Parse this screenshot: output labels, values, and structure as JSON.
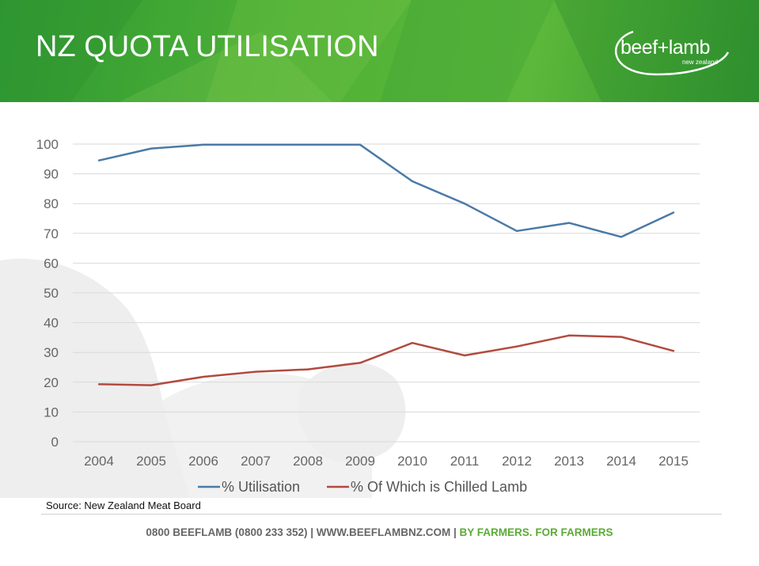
{
  "header": {
    "title": "NZ QUOTA UTILISATION"
  },
  "logo": {
    "main": "beef+lamb",
    "sub": "new zealand"
  },
  "source": "Source: New Zealand Meat Board",
  "footer": {
    "contact": "0800 BEEFLAMB (0800 233 352) | WWW.BEEFLAMBNZ.COM | ",
    "tagline": "BY FARMERS. FOR FARMERS"
  },
  "colors": {
    "header_green": "#4fb136",
    "series_utilisation": "#4a7aa7",
    "series_chilled": "#b24a40",
    "footer_tag": "#5bab35"
  },
  "chart_data": {
    "type": "line",
    "title": "",
    "xlabel": "",
    "ylabel": "",
    "categories": [
      "2004",
      "2005",
      "2006",
      "2007",
      "2008",
      "2009",
      "2010",
      "2011",
      "2012",
      "2013",
      "2014",
      "2015"
    ],
    "ylim": [
      0,
      100
    ],
    "yticks": [
      0,
      10,
      20,
      30,
      40,
      50,
      60,
      70,
      80,
      90,
      100
    ],
    "grid": true,
    "legend_position": "bottom",
    "series": [
      {
        "name": "% Utilisation",
        "values": [
          94.5,
          98.5,
          99.8,
          99.8,
          99.8,
          99.8,
          87.5,
          80,
          70.8,
          73.5,
          68.8,
          77
        ]
      },
      {
        "name": "% Of Which is Chilled Lamb",
        "values": [
          19.3,
          19,
          21.8,
          23.5,
          24.3,
          26.5,
          33.2,
          29,
          32,
          35.7,
          35.2,
          30.5
        ]
      }
    ]
  }
}
